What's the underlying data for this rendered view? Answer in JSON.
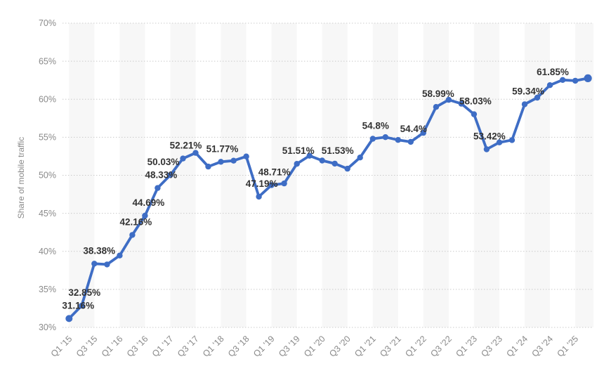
{
  "chart_data": {
    "type": "line",
    "ylabel": "Share of mobile traffic",
    "ylim": [
      30,
      70
    ],
    "grid": "horizontal-dotted",
    "legend": "none",
    "y_tick_labels": [
      "30%",
      "35%",
      "40%",
      "45%",
      "50%",
      "55%",
      "60%",
      "65%",
      "70%"
    ],
    "x_tick_labels": [
      "Q1 '15",
      "Q3 '15",
      "Q1 '16",
      "Q3 '16",
      "Q1 '17",
      "Q3 '17",
      "Q1 '18",
      "Q3 '18",
      "Q1 '19",
      "Q3 '19",
      "Q1 '20",
      "Q3 '20",
      "Q1 '21",
      "Q3 '21",
      "Q1 '22",
      "Q3 '22",
      "Q1 '23",
      "Q3 '23",
      "Q1 '24",
      "Q3 '24",
      "Q1 '25"
    ],
    "x": [
      "Q1 '15",
      "Q2 '15",
      "Q3 '15",
      "Q4 '15",
      "Q1 '16",
      "Q2 '16",
      "Q3 '16",
      "Q4 '16",
      "Q1 '17",
      "Q2 '17",
      "Q3 '17",
      "Q4 '17",
      "Q1 '18",
      "Q2 '18",
      "Q3 '18",
      "Q4 '18",
      "Q1 '19",
      "Q2 '19",
      "Q3 '19",
      "Q4 '19",
      "Q1 '20",
      "Q2 '20",
      "Q3 '20",
      "Q4 '20",
      "Q1 '21",
      "Q2 '21",
      "Q3 '21",
      "Q4 '21",
      "Q1 '22",
      "Q2 '22",
      "Q3 '22",
      "Q4 '22",
      "Q1 '23",
      "Q2 '23",
      "Q3 '23",
      "Q4 '23",
      "Q1 '24",
      "Q2 '24",
      "Q3 '24",
      "Q4 '24",
      "Q1 '25",
      "Q2 '25"
    ],
    "series": [
      {
        "name": "Share of mobile traffic",
        "values": [
          31.16,
          32.85,
          38.38,
          38.28,
          39.45,
          42.16,
          44.69,
          48.33,
          50.03,
          52.21,
          52.95,
          51.15,
          51.77,
          51.92,
          52.48,
          47.19,
          48.71,
          48.93,
          51.51,
          52.57,
          51.94,
          51.53,
          50.87,
          52.34,
          54.8,
          55.02,
          54.65,
          54.4,
          55.58,
          58.99,
          59.92,
          59.41,
          58.03,
          53.42,
          54.32,
          54.63,
          59.34,
          60.21,
          61.85,
          62.54,
          62.43,
          62.76
        ]
      }
    ],
    "point_labels": [
      {
        "i": 0,
        "text": "31.16%",
        "dx": 13
      },
      {
        "i": 1,
        "text": "32.85%",
        "dx": 4
      },
      {
        "i": 2,
        "text": "38.38%",
        "dx": 7
      },
      {
        "i": 5,
        "text": "42.16%",
        "dx": 5
      },
      {
        "i": 6,
        "text": "44.69%",
        "dx": 5
      },
      {
        "i": 7,
        "text": "48.33%",
        "dx": 5
      },
      {
        "i": 8,
        "text": "50.03%",
        "dx": -10
      },
      {
        "i": 9,
        "text": "52.21%",
        "dx": 4
      },
      {
        "i": 12,
        "text": "51.77%",
        "dx": 2
      },
      {
        "i": 15,
        "text": "47.19%",
        "dx": 4
      },
      {
        "i": 16,
        "text": "48.71%",
        "dx": 4
      },
      {
        "i": 18,
        "text": "51.51%",
        "dx": 2
      },
      {
        "i": 21,
        "text": "51.53%",
        "dx": 4
      },
      {
        "i": 24,
        "text": "54.8%",
        "dx": 4
      },
      {
        "i": 27,
        "text": "54.4%",
        "dx": 4
      },
      {
        "i": 29,
        "text": "58.99%",
        "dx": 3
      },
      {
        "i": 32,
        "text": "58.03%",
        "dx": 2
      },
      {
        "i": 33,
        "text": "53.42%",
        "dx": 4
      },
      {
        "i": 36,
        "text": "59.34%",
        "dx": 5
      },
      {
        "i": 38,
        "text": "61.85%",
        "dx": 4
      }
    ],
    "colors": {
      "line": "#3e6dc5",
      "point_label_text": "#333333",
      "axis_text": "#8a8a8a",
      "gridline": "#c8c8c8",
      "band": "#f7f7f7",
      "background": "#ffffff"
    }
  }
}
